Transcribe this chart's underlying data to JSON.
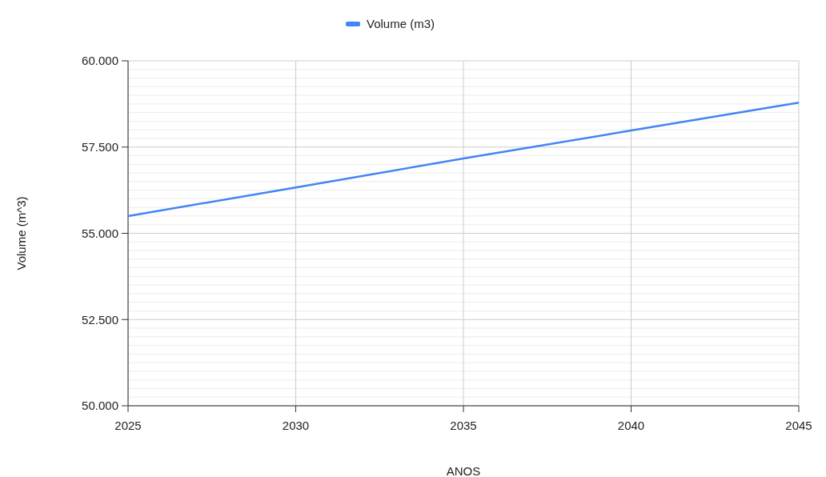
{
  "chart_data": {
    "type": "line",
    "xlabel": "ANOS",
    "ylabel": "Volume (m^3)",
    "x": [
      2025,
      2030,
      2035,
      2040,
      2045
    ],
    "series": [
      {
        "name": "Volume (m3)",
        "color": "#4285f4",
        "values": [
          55500,
          56330,
          57170,
          57980,
          58790
        ]
      }
    ],
    "xlim": [
      2025,
      2045
    ],
    "xticks": [
      2025,
      2030,
      2035,
      2040,
      2045
    ],
    "ylim": [
      50000,
      60000
    ],
    "yticks": [
      {
        "value": 50000,
        "label": "50.000"
      },
      {
        "value": 52500,
        "label": "52.500"
      },
      {
        "value": 55000,
        "label": "55.000"
      },
      {
        "value": 57500,
        "label": "57.500"
      },
      {
        "value": 60000,
        "label": "60.000"
      }
    ],
    "grid": true,
    "legend": "top",
    "marker": "none",
    "line_style": "solid"
  }
}
